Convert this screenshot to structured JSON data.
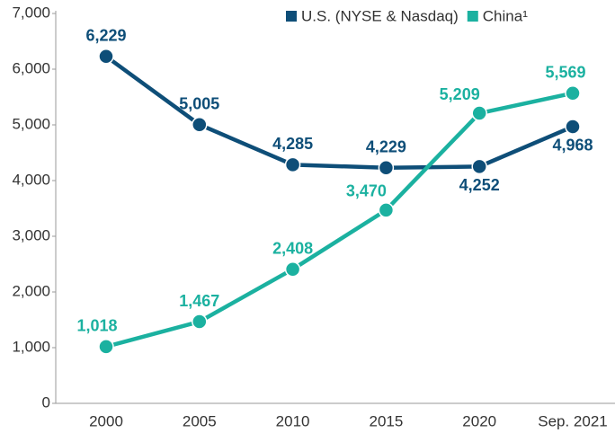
{
  "chart_data": {
    "type": "line",
    "categories": [
      "2000",
      "2005",
      "2010",
      "2015",
      "2020",
      "Sep. 2021"
    ],
    "series": [
      {
        "name": "U.S. (NYSE & Nasdaq)",
        "color": "#0e4e78",
        "values": [
          6229,
          5005,
          4285,
          4229,
          4252,
          4968
        ],
        "value_labels": [
          "6,229",
          "5,005",
          "4,285",
          "4,229",
          "4,252",
          "4,968"
        ]
      },
      {
        "name": "China¹",
        "color": "#1bb1a0",
        "values": [
          1018,
          1467,
          2408,
          3470,
          5209,
          5569
        ],
        "value_labels": [
          "1,018",
          "1,467",
          "2,408",
          "3,470",
          "5,209",
          "5,569"
        ]
      }
    ],
    "ylim": [
      0,
      7000
    ],
    "yticks": [
      0,
      {
        "value": 1000,
        "label": "1,000"
      },
      {
        "value": 2000,
        "label": "2,000"
      },
      {
        "value": 3000,
        "label": "3,000"
      },
      {
        "value": 4000,
        "label": "4,000"
      },
      {
        "value": 5000,
        "label": "5,000"
      },
      {
        "value": 6000,
        "label": "6,000"
      },
      {
        "value": 7000,
        "label": "7,000"
      }
    ],
    "grid": false,
    "legend": "top-right"
  }
}
